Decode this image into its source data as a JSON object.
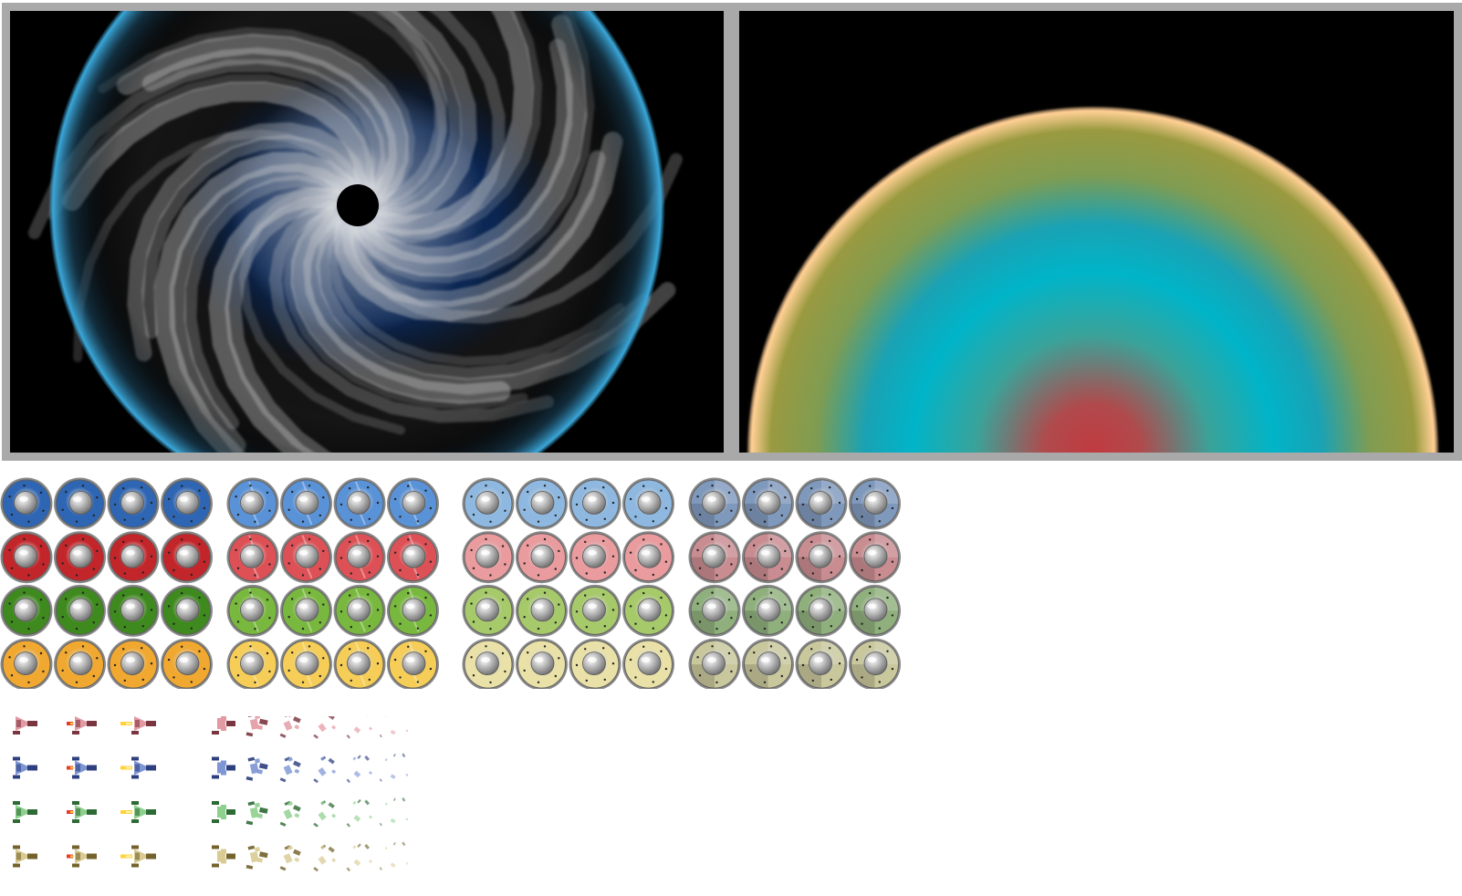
{
  "scene": {
    "vortex": {
      "background": "#000000",
      "rim_color": "#3aa6d8",
      "arm_color": "#d8d8d8",
      "core_color": "#05214a",
      "center_color": "#000000"
    },
    "planet": {
      "background": "#000000",
      "band_colors": [
        "#ffcf94",
        "#9a9a40",
        "#1aa2b4",
        "#00b4c8",
        "#3aa39a",
        "#c03a40"
      ]
    }
  },
  "orb_sheet": {
    "columns_per_group": 4,
    "groups": [
      {
        "name": "full",
        "style": "radial"
      },
      {
        "name": "cracked",
        "style": "cracked"
      },
      {
        "name": "faded",
        "style": "faded"
      },
      {
        "name": "quartered",
        "style": "quartered"
      }
    ],
    "rows": [
      {
        "name": "blue",
        "colors": [
          "#2f66b3",
          "#5a92d8",
          "#8eb8e0",
          "#7f99bd"
        ]
      },
      {
        "name": "red",
        "colors": [
          "#c2262a",
          "#dd5156",
          "#e99b9e",
          "#c98c90"
        ]
      },
      {
        "name": "green",
        "colors": [
          "#3f8a1f",
          "#79b83e",
          "#a6c96a",
          "#8fb07c"
        ]
      },
      {
        "name": "yellow",
        "colors": [
          "#f0a830",
          "#f5cd57",
          "#e9e1a7",
          "#c9c79c"
        ]
      }
    ],
    "knob_color": "#bdbdbd"
  },
  "ship_sheet": {
    "rows": [
      {
        "name": "red",
        "dark": "#7a3640",
        "light": "#e39aa2"
      },
      {
        "name": "blue",
        "dark": "#2d3f7e",
        "light": "#7e96d4"
      },
      {
        "name": "green",
        "dark": "#2e6a35",
        "light": "#8ed08e"
      },
      {
        "name": "yellow",
        "dark": "#73622b",
        "light": "#d9cb93"
      }
    ],
    "thrust_frames": [
      "idle",
      "thrust-red",
      "thrust-yellow"
    ],
    "explosion_frames": 6,
    "flame_colors": [
      "#e53b2a",
      "#ffd23a"
    ]
  }
}
